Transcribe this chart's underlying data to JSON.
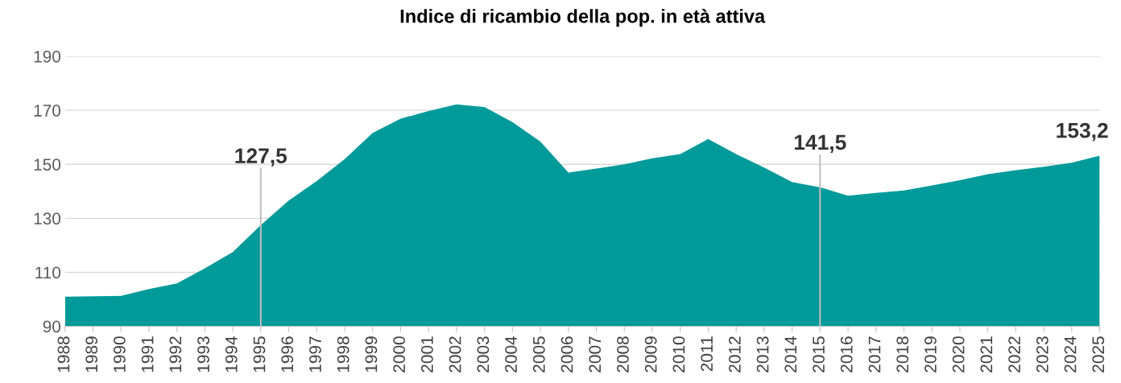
{
  "chart_data": {
    "type": "area",
    "title": "Indice di ricambio della pop. in età attiva",
    "categories": [
      "1988",
      "1989",
      "1990",
      "1991",
      "1992",
      "1993",
      "1994",
      "1995",
      "1996",
      "1997",
      "1998",
      "1999",
      "2000",
      "2001",
      "2002",
      "2003",
      "2004",
      "2005",
      "2006",
      "2007",
      "2008",
      "2009",
      "2010",
      "2011",
      "2012",
      "2013",
      "2014",
      "2015",
      "2016",
      "2017",
      "2018",
      "2019",
      "2020",
      "2021",
      "2022",
      "2023",
      "2024",
      "2025"
    ],
    "series": [
      {
        "color": "#009a9a",
        "values": [
          101.0,
          101.1,
          101.3,
          103.8,
          105.9,
          111.5,
          117.5,
          127.5,
          136.6,
          143.8,
          151.9,
          161.6,
          166.9,
          169.7,
          172.2,
          171.2,
          165.6,
          158.4,
          146.9,
          148.4,
          150.0,
          152.2,
          153.8,
          159.4,
          153.8,
          148.8,
          143.4,
          141.5,
          138.4,
          139.4,
          140.3,
          142.2,
          144.1,
          146.3,
          147.8,
          149.1,
          150.6,
          153.2
        ],
        "value_labels": [
          null,
          null,
          null,
          null,
          null,
          null,
          null,
          "127,5",
          null,
          null,
          null,
          null,
          null,
          null,
          null,
          null,
          null,
          null,
          null,
          null,
          null,
          null,
          null,
          null,
          null,
          null,
          null,
          "141,5",
          null,
          null,
          null,
          null,
          null,
          null,
          null,
          null,
          null,
          "153,2"
        ]
      }
    ],
    "ylim": [
      90,
      190
    ],
    "yticks": [
      90,
      110,
      130,
      150,
      170,
      190
    ],
    "grid": "y",
    "legend": false,
    "ref_lines": [
      {
        "axis": "x",
        "value": "1995",
        "color": "#bfbfbf"
      },
      {
        "axis": "x",
        "value": "2015",
        "color": "#bfbfbf"
      }
    ]
  }
}
